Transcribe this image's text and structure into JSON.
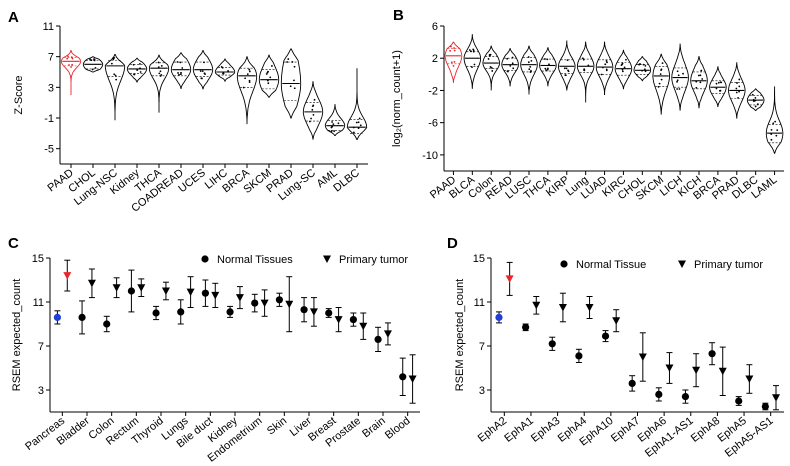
{
  "figure": {
    "background": "#ffffff",
    "ink": "#000000",
    "highlight_red": "#e8272b",
    "highlight_blue": "#1f3fd6"
  },
  "chart_data": [
    {
      "panel": "A",
      "type": "violin",
      "ylabel": "Z-Score",
      "ylim": [
        -7,
        11
      ],
      "yticks": [
        -5,
        -1,
        3,
        7,
        11
      ],
      "categories": [
        "PAAD",
        "CHOL",
        "Lung-NSC",
        "Kidney",
        "THCA",
        "COADREAD",
        "UCES",
        "LIHC",
        "BRCA",
        "SKCM",
        "PRAD",
        "Lung-SC",
        "AML",
        "DLBC"
      ],
      "highlight": "PAAD",
      "violins": [
        {
          "median": 6.4,
          "q1": 5.8,
          "q3": 6.9,
          "min": 2.0,
          "max": 7.8
        },
        {
          "median": 6.0,
          "q1": 5.4,
          "q3": 6.5,
          "min": 5.0,
          "max": 7.0
        },
        {
          "median": 5.8,
          "q1": 4.4,
          "q3": 6.5,
          "min": -1.3,
          "max": 7.3
        },
        {
          "median": 5.4,
          "q1": 4.8,
          "q3": 6.0,
          "min": 3.7,
          "max": 6.8
        },
        {
          "median": 5.5,
          "q1": 4.5,
          "q3": 6.2,
          "min": -0.3,
          "max": 7.2
        },
        {
          "median": 5.3,
          "q1": 4.5,
          "q3": 6.3,
          "min": 2.8,
          "max": 7.5
        },
        {
          "median": 5.3,
          "q1": 4.4,
          "q3": 6.3,
          "min": 2.8,
          "max": 7.8
        },
        {
          "median": 5.0,
          "q1": 4.6,
          "q3": 5.6,
          "min": 3.8,
          "max": 6.7
        },
        {
          "median": 4.5,
          "q1": 3.0,
          "q3": 5.5,
          "min": -1.8,
          "max": 7.0
        },
        {
          "median": 4.0,
          "q1": 2.8,
          "q3": 5.3,
          "min": 1.7,
          "max": 7.2
        },
        {
          "median": 3.5,
          "q1": 1.3,
          "q3": 6.3,
          "min": -1.0,
          "max": 8.0
        },
        {
          "median": -0.2,
          "q1": -1.4,
          "q3": 1.0,
          "min": -3.8,
          "max": 3.8
        },
        {
          "median": -2.0,
          "q1": -2.6,
          "q3": -1.3,
          "min": -3.3,
          "max": 0.8
        },
        {
          "median": -2.2,
          "q1": -3.0,
          "q3": -1.2,
          "min": -3.8,
          "max": 5.5
        }
      ]
    },
    {
      "panel": "B",
      "type": "violin",
      "ylabel": "log₂(norm_count+1)",
      "ylim": [
        -12,
        6
      ],
      "yticks": [
        -10,
        -6,
        -2,
        2,
        6
      ],
      "categories": [
        "PAAD",
        "BLCA",
        "Colon",
        "READ",
        "LUSC",
        "THCA",
        "KIRP",
        "Lung",
        "LUAD",
        "KIRC",
        "CHOL",
        "SKCM",
        "LICH",
        "KICH",
        "BRCA",
        "PRAD",
        "DLBC",
        "LAML"
      ],
      "highlight": "PAAD",
      "violins": [
        {
          "median": 2.3,
          "q1": 1.3,
          "q3": 3.2,
          "min": -1.0,
          "max": 4.0
        },
        {
          "median": 2.0,
          "q1": 1.0,
          "q3": 2.8,
          "min": -1.8,
          "max": 5.0
        },
        {
          "median": 1.4,
          "q1": 0.7,
          "q3": 2.2,
          "min": -2.0,
          "max": 3.5
        },
        {
          "median": 1.2,
          "q1": 0.5,
          "q3": 2.0,
          "min": -1.5,
          "max": 3.2
        },
        {
          "median": 1.2,
          "q1": 0.3,
          "q3": 2.1,
          "min": -2.5,
          "max": 3.5
        },
        {
          "median": 1.1,
          "q1": 0.4,
          "q3": 1.9,
          "min": -1.5,
          "max": 3.3
        },
        {
          "median": 1.0,
          "q1": 0.1,
          "q3": 1.8,
          "min": -2.0,
          "max": 4.2
        },
        {
          "median": 1.0,
          "q1": 0.2,
          "q3": 1.9,
          "min": -3.5,
          "max": 4.0
        },
        {
          "median": 0.9,
          "q1": 0.0,
          "q3": 1.8,
          "min": -2.5,
          "max": 4.0
        },
        {
          "median": 0.7,
          "q1": -0.1,
          "q3": 1.5,
          "min": -1.8,
          "max": 3.0
        },
        {
          "median": 0.5,
          "q1": 0.0,
          "q3": 1.2,
          "min": -0.8,
          "max": 2.2
        },
        {
          "median": -0.2,
          "q1": -1.5,
          "q3": 1.0,
          "min": -5.0,
          "max": 2.5
        },
        {
          "median": -0.4,
          "q1": -1.6,
          "q3": 0.8,
          "min": -4.5,
          "max": 3.8
        },
        {
          "median": -0.8,
          "q1": -1.8,
          "q3": 0.3,
          "min": -4.2,
          "max": 2.2
        },
        {
          "median": -1.6,
          "q1": -2.4,
          "q3": -0.8,
          "min": -4.0,
          "max": 1.0
        },
        {
          "median": -2.0,
          "q1": -3.0,
          "q3": -1.0,
          "min": -5.5,
          "max": 1.5
        },
        {
          "median": -3.2,
          "q1": -3.8,
          "q3": -2.6,
          "min": -4.5,
          "max": -1.8
        },
        {
          "median": -7.3,
          "q1": -8.5,
          "q3": -6.2,
          "min": -9.8,
          "max": -1.5
        }
      ]
    },
    {
      "panel": "C",
      "type": "errorbar",
      "ylabel": "RSEM expected_count",
      "ylim": [
        1,
        15
      ],
      "yticks": [
        3,
        7,
        11,
        15
      ],
      "legend": [
        "Normal Tissues",
        "Primary tumor"
      ],
      "categories": [
        "Pancreas",
        "Bladder",
        "Colon",
        "Rectum",
        "Thyroid",
        "Lungs",
        "Bile duct",
        "Kidney",
        "Endometrium",
        "Skin",
        "Liver",
        "Breast",
        "Prostate",
        "Brain",
        "Blood"
      ],
      "normal": [
        {
          "mean": 9.6,
          "err": 0.6,
          "color": "blue"
        },
        {
          "mean": 9.6,
          "err": 1.5
        },
        {
          "mean": 9.0,
          "err": 0.7
        },
        {
          "mean": 12.0,
          "err": 1.9
        },
        {
          "mean": 10.0,
          "err": 0.6
        },
        {
          "mean": 10.1,
          "err": 1.1
        },
        {
          "mean": 11.8,
          "err": 1.2
        },
        {
          "mean": 10.1,
          "err": 0.5
        },
        {
          "mean": 10.9,
          "err": 0.8
        },
        {
          "mean": 11.2,
          "err": 0.6
        },
        {
          "mean": 10.3,
          "err": 1.1
        },
        {
          "mean": 10.0,
          "err": 0.4
        },
        {
          "mean": 9.4,
          "err": 0.6
        },
        {
          "mean": 7.6,
          "err": 1.1
        },
        {
          "mean": 4.2,
          "err": 1.7
        }
      ],
      "tumor": [
        {
          "mean": 13.4,
          "err": 1.4,
          "color": "red"
        },
        {
          "mean": 12.7,
          "err": 1.3
        },
        {
          "mean": 12.3,
          "err": 0.9
        },
        {
          "mean": 12.3,
          "err": 0.8
        },
        {
          "mean": 12.0,
          "err": 0.8
        },
        {
          "mean": 11.9,
          "err": 1.4
        },
        {
          "mean": 11.6,
          "err": 1.1
        },
        {
          "mean": 11.4,
          "err": 1.0
        },
        {
          "mean": 10.9,
          "err": 1.2
        },
        {
          "mean": 10.8,
          "err": 2.5
        },
        {
          "mean": 10.1,
          "err": 1.3
        },
        {
          "mean": 9.4,
          "err": 1.1
        },
        {
          "mean": 8.8,
          "err": 1.2
        },
        {
          "mean": 8.1,
          "err": 1.0
        },
        {
          "mean": 4.0,
          "err": 2.2
        }
      ]
    },
    {
      "panel": "D",
      "type": "errorbar",
      "ylabel": "RSEM expected_count",
      "ylim": [
        1,
        15
      ],
      "yticks": [
        3,
        7,
        11,
        15
      ],
      "legend": [
        "Normal Tissue",
        "Primary tumor"
      ],
      "categories": [
        "EphA2",
        "EphA1",
        "EphA3",
        "EphA4",
        "EphA10",
        "EphA7",
        "EphA6",
        "EphA1-AS1",
        "EphA8",
        "EphA5",
        "EphA5-AS1"
      ],
      "normal": [
        {
          "mean": 9.6,
          "err": 0.5,
          "color": "blue"
        },
        {
          "mean": 8.7,
          "err": 0.3
        },
        {
          "mean": 7.2,
          "err": 0.6
        },
        {
          "mean": 6.1,
          "err": 0.6
        },
        {
          "mean": 7.9,
          "err": 0.5
        },
        {
          "mean": 3.6,
          "err": 0.7
        },
        {
          "mean": 2.6,
          "err": 0.6
        },
        {
          "mean": 2.4,
          "err": 0.6
        },
        {
          "mean": 6.3,
          "err": 1.0
        },
        {
          "mean": 2.0,
          "err": 0.4
        },
        {
          "mean": 1.5,
          "err": 0.3
        }
      ],
      "tumor": [
        {
          "mean": 13.1,
          "err": 1.5,
          "color": "red"
        },
        {
          "mean": 10.7,
          "err": 0.8
        },
        {
          "mean": 10.5,
          "err": 1.3
        },
        {
          "mean": 10.5,
          "err": 1.0
        },
        {
          "mean": 9.3,
          "err": 1.0
        },
        {
          "mean": 6.0,
          "err": 2.2
        },
        {
          "mean": 5.0,
          "err": 1.4
        },
        {
          "mean": 4.8,
          "err": 1.5
        },
        {
          "mean": 4.7,
          "err": 2.2
        },
        {
          "mean": 4.0,
          "err": 1.3
        },
        {
          "mean": 2.3,
          "err": 1.1
        }
      ]
    }
  ]
}
